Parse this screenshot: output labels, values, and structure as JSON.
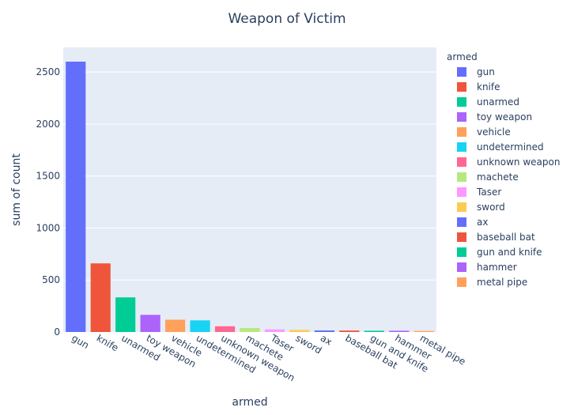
{
  "chart_data": {
    "type": "bar",
    "title": "Weapon of Victim",
    "xlabel": "armed",
    "ylabel": "sum of count",
    "categories": [
      "gun",
      "knife",
      "unarmed",
      "toy weapon",
      "vehicle",
      "undetermined",
      "unknown weapon",
      "machete",
      "Taser",
      "sword",
      "ax",
      "baseball bat",
      "gun and knife",
      "hammer",
      "metal pipe"
    ],
    "values": [
      2600,
      660,
      333,
      165,
      118,
      112,
      55,
      38,
      25,
      20,
      15,
      14,
      12,
      12,
      10
    ],
    "colors": [
      "#636efa",
      "#EF553B",
      "#00cc96",
      "#ab63fa",
      "#FFA15A",
      "#19d3f3",
      "#FF6692",
      "#B6E880",
      "#FF97FF",
      "#FECB52",
      "#636efa",
      "#EF553B",
      "#00cc96",
      "#ab63fa",
      "#FFA15A"
    ],
    "ylim": [
      0,
      2737
    ],
    "yticks": [
      0,
      500,
      1000,
      1500,
      2000,
      2500
    ],
    "grid": true,
    "legend_title": "armed",
    "legend_position": "right",
    "plot_bg": "#e5ecf6"
  }
}
